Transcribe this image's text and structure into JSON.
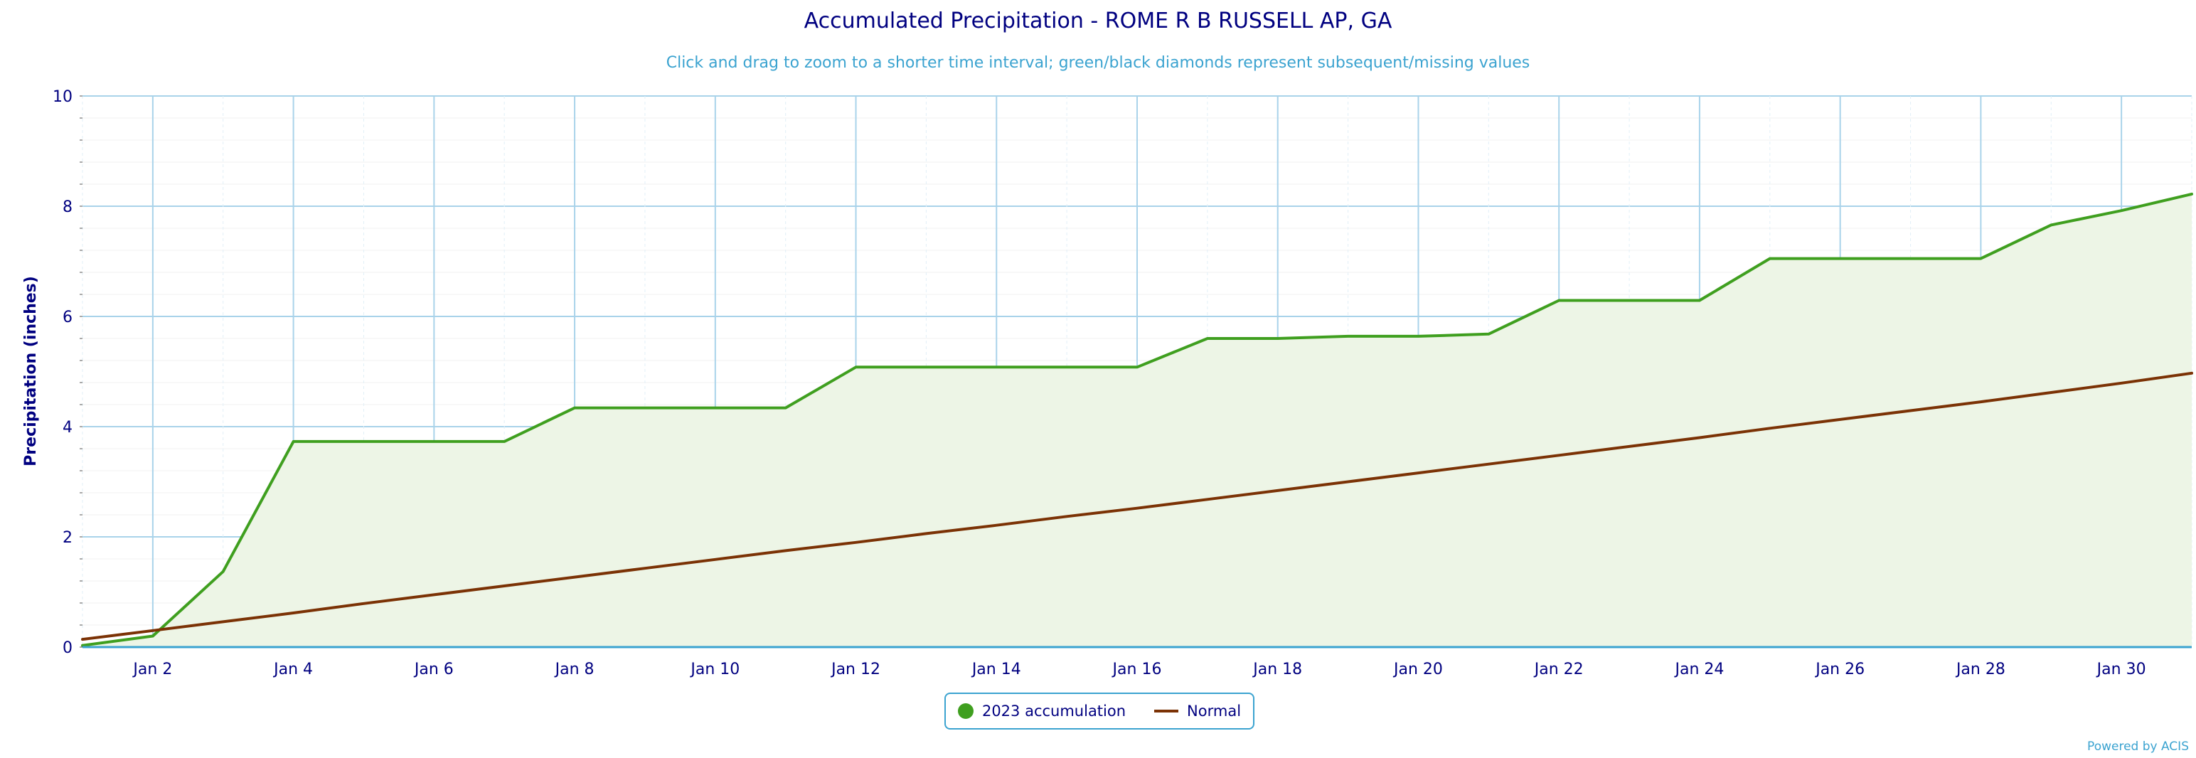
{
  "header": {
    "title": "Accumulated Precipitation - ROME R B RUSSELL AP, GA",
    "subtitle": "Click and drag to zoom to a shorter time interval; green/black diamonds represent subsequent/missing values"
  },
  "legend": {
    "accumulation_label": "2023 accumulation",
    "normal_label": "Normal"
  },
  "credit": "Powered by ACIS",
  "chart_data": {
    "type": "area",
    "title": "Accumulated Precipitation - ROME R B RUSSELL AP, GA",
    "subtitle": "Click and drag to zoom to a shorter time interval; green/black diamonds represent subsequent/missing values",
    "xlabel": "",
    "ylabel": "Precipitation (inches)",
    "ylim": [
      0,
      10
    ],
    "xlim": [
      "2023-01-01",
      "2023-01-31"
    ],
    "y_ticks": [
      0,
      2,
      4,
      6,
      8,
      10
    ],
    "x_ticks": [
      {
        "day": 2,
        "label": "Jan 2"
      },
      {
        "day": 4,
        "label": "Jan 4"
      },
      {
        "day": 6,
        "label": "Jan 6"
      },
      {
        "day": 8,
        "label": "Jan 8"
      },
      {
        "day": 10,
        "label": "Jan 10"
      },
      {
        "day": 12,
        "label": "Jan 12"
      },
      {
        "day": 14,
        "label": "Jan 14"
      },
      {
        "day": 16,
        "label": "Jan 16"
      },
      {
        "day": 18,
        "label": "Jan 18"
      },
      {
        "day": 20,
        "label": "Jan 20"
      },
      {
        "day": 22,
        "label": "Jan 22"
      },
      {
        "day": 24,
        "label": "Jan 24"
      },
      {
        "day": 26,
        "label": "Jan 26"
      },
      {
        "day": 28,
        "label": "Jan 28"
      },
      {
        "day": 30,
        "label": "Jan 30"
      }
    ],
    "grid": true,
    "legend_position": "bottom-center",
    "x": [
      1,
      2,
      3,
      4,
      5,
      6,
      7,
      8,
      9,
      10,
      11,
      12,
      13,
      14,
      15,
      16,
      17,
      18,
      19,
      20,
      21,
      22,
      23,
      24,
      25,
      26,
      27,
      28,
      29,
      30,
      31
    ],
    "series": [
      {
        "name": "2023 accumulation",
        "type": "area",
        "color": "#3f9f1f",
        "fill": "#edf5e6",
        "values": [
          0.03,
          0.2,
          1.37,
          3.73,
          3.73,
          3.73,
          3.73,
          4.34,
          4.34,
          4.34,
          4.34,
          5.08,
          5.08,
          5.08,
          5.08,
          5.08,
          5.6,
          5.6,
          5.64,
          5.64,
          5.68,
          6.29,
          6.29,
          6.29,
          7.05,
          7.05,
          7.05,
          7.05,
          7.66,
          7.92,
          8.22
        ]
      },
      {
        "name": "Normal",
        "type": "line",
        "color": "#7b3205",
        "values": [
          0.14,
          0.3,
          0.46,
          0.62,
          0.79,
          0.95,
          1.11,
          1.27,
          1.43,
          1.59,
          1.75,
          1.9,
          2.06,
          2.21,
          2.37,
          2.52,
          2.68,
          2.84,
          3.0,
          3.16,
          3.32,
          3.48,
          3.64,
          3.8,
          3.97,
          4.13,
          4.29,
          4.45,
          4.62,
          4.79,
          4.97
        ]
      }
    ]
  }
}
